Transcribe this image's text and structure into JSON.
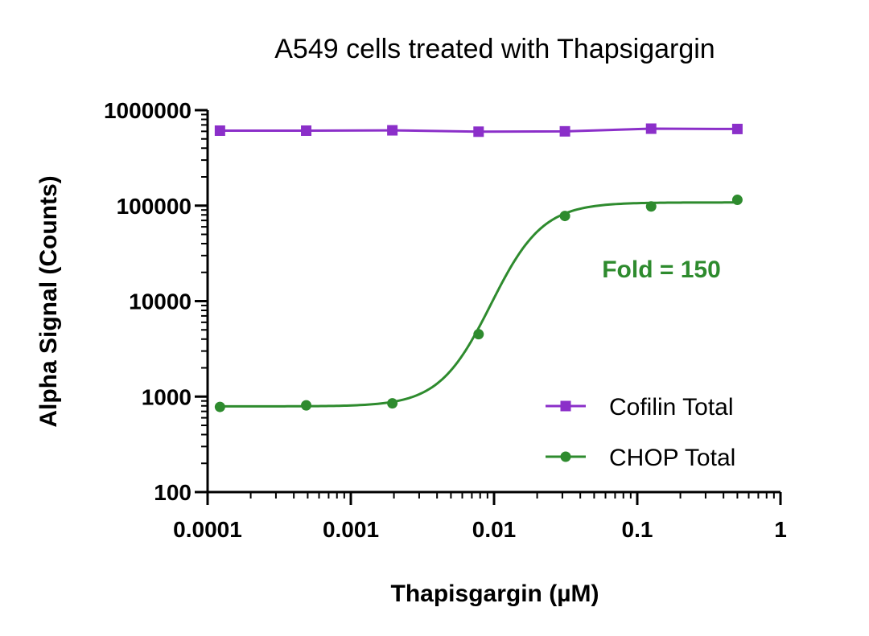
{
  "chart_data": {
    "type": "scatter",
    "title": "A549 cells treated with Thapsigargin",
    "xlabel": "Thapisgargin (µM)",
    "ylabel": "Alpha Signal (Counts)",
    "xscale": "log",
    "yscale": "log",
    "xlim": [
      0.0001,
      1
    ],
    "ylim": [
      100,
      1000000
    ],
    "x_ticks": [
      {
        "value": 0.0001,
        "label": "0.0001"
      },
      {
        "value": 0.001,
        "label": "0.001"
      },
      {
        "value": 0.01,
        "label": "0.01"
      },
      {
        "value": 0.1,
        "label": "0.1"
      },
      {
        "value": 1,
        "label": "1"
      }
    ],
    "y_ticks": [
      {
        "value": 100,
        "label": "100"
      },
      {
        "value": 1000,
        "label": "1000"
      },
      {
        "value": 10000,
        "label": "10000"
      },
      {
        "value": 100000,
        "label": "100000"
      },
      {
        "value": 1000000,
        "label": "1000000"
      }
    ],
    "grid": false,
    "legend_position": "bottom-right",
    "series": [
      {
        "name": "Cofilin Total",
        "color": "#8B2FC9",
        "marker": "square",
        "x": [
          0.000122,
          0.000488,
          0.00195,
          0.0078,
          0.03125,
          0.125,
          0.5
        ],
        "y": [
          610000,
          610000,
          615000,
          595000,
          600000,
          640000,
          635000
        ]
      },
      {
        "name": "CHOP Total",
        "color": "#2E8B2E",
        "marker": "circle",
        "x": [
          0.000122,
          0.000488,
          0.00195,
          0.0078,
          0.03125,
          0.125,
          0.5
        ],
        "y": [
          780,
          810,
          850,
          4500,
          78000,
          98000,
          115000
        ],
        "fit": {
          "bottom": 790,
          "top": 108000,
          "ec50": 0.0095,
          "hill": 2.4
        }
      }
    ],
    "annotations": [
      {
        "text": "Fold = 150",
        "color": "#2E8B2E"
      }
    ]
  }
}
